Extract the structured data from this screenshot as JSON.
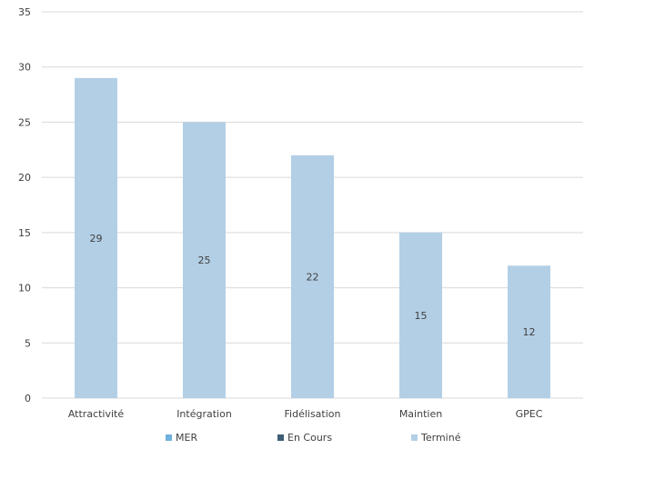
{
  "chart_data": {
    "type": "bar",
    "categories": [
      "Attractivité",
      "Intégration",
      "Fidélisation",
      "Maintien",
      "GPEC"
    ],
    "series": [
      {
        "name": "MER",
        "values": [
          0,
          0,
          0,
          0,
          0
        ],
        "color": "#6FB0DE"
      },
      {
        "name": "En Cours",
        "values": [
          0,
          0,
          0,
          0,
          0
        ],
        "color": "#3E5E73"
      },
      {
        "name": "Terminé",
        "values": [
          29,
          25,
          22,
          15,
          12
        ],
        "color": "#B3CFE6"
      }
    ],
    "data_labels": [
      "29",
      "25",
      "22",
      "15",
      "12"
    ],
    "ylim": [
      0,
      35
    ],
    "yticks": [
      0,
      5,
      10,
      15,
      20,
      25,
      30,
      35
    ],
    "grid": true,
    "legend_position": "bottom",
    "colors": {
      "gridline": "#D9D9D9",
      "text": "#404040"
    }
  }
}
